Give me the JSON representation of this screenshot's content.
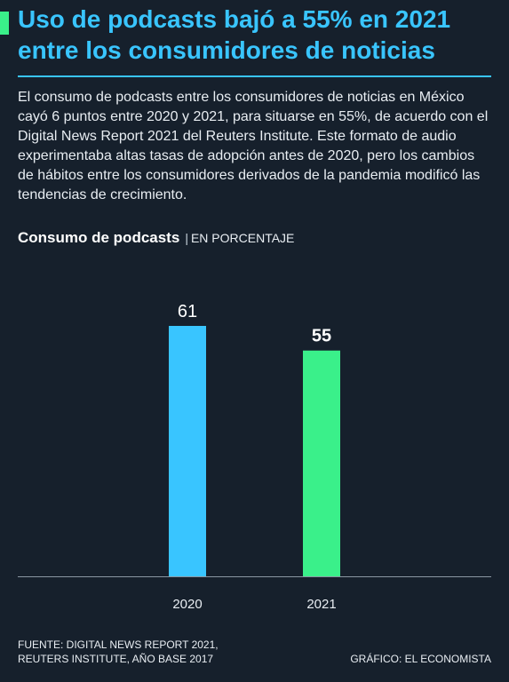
{
  "header": {
    "title": "Uso de podcasts bajó a 55% en 2021 entre los consumidores de noticias",
    "accent_color": "#3af08a",
    "title_color": "#39c5ff"
  },
  "intro": "El consumo de podcasts entre los consumidores de noticias en México cayó 6 puntos entre 2020 y 2021, para situarse en 55%, de acuerdo con el Digital News Report 2021 del Reuters Institute. Este formato de audio experimentaba altas tasas de adopción antes de 2020, pero los cambios de hábitos entre los consumidores derivados de la pandemia modificó las tendencias de crecimiento.",
  "chart_heading": {
    "title": "Consumo de podcasts",
    "separator": "|",
    "units": "EN PORCENTAJE"
  },
  "chart_data": {
    "type": "bar",
    "title": "Consumo de podcasts",
    "subtitle": "EN PORCENTAJE",
    "categories": [
      "2020",
      "2021"
    ],
    "values": [
      61,
      55
    ],
    "data_labels": [
      "61",
      "55"
    ],
    "bar_colors": [
      "#39c5ff",
      "#3af08a"
    ],
    "highlight_index": 1,
    "ylim": [
      0,
      61
    ],
    "grid": false,
    "legend": "none"
  },
  "footer": {
    "source_line1": "FUENTE: DIGITAL NEWS REPORT 2021,",
    "source_line2": "REUTERS INSTITUTE, AÑO BASE 2017",
    "credit": "GRÁFICO: EL ECONOMISTA"
  }
}
